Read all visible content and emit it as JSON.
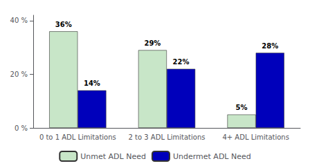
{
  "chart_data": {
    "type": "bar",
    "categories": [
      "0 to 1 ADL Limitations",
      "2 to 3 ADL Limitations",
      "4+ ADL Limitations"
    ],
    "series": [
      {
        "name": "Unmet ADL Need",
        "color": "#c8e6c8",
        "values": [
          36,
          29,
          5
        ],
        "value_labels": [
          "36%",
          "29%",
          "5%"
        ]
      },
      {
        "name": "Undermet ADL Need",
        "color": "#0000bb",
        "values": [
          14,
          22,
          28
        ],
        "value_labels": [
          "14%",
          "22%",
          "28%"
        ]
      }
    ],
    "ylim": [
      0,
      42
    ],
    "yticks": [
      {
        "value": 0,
        "label": "0 %"
      },
      {
        "value": 20,
        "label": "20 %"
      },
      {
        "value": 40,
        "label": "40 %"
      }
    ],
    "grid": false,
    "legend": "bottom",
    "data_labels": true
  }
}
